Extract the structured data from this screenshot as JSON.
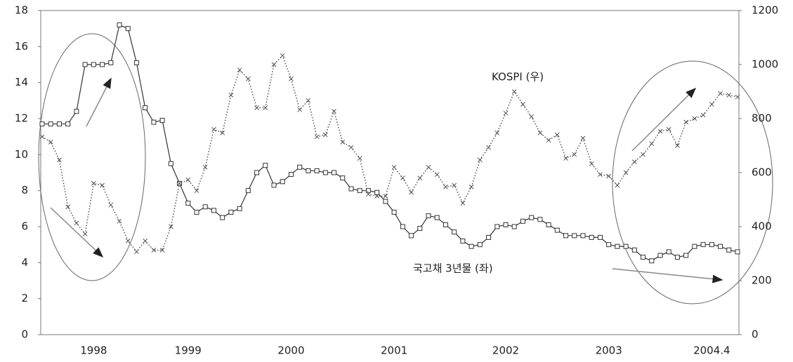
{
  "chart_data": {
    "type": "line",
    "categories": [
      null,
      null,
      null,
      null,
      null,
      null,
      "1998",
      null,
      null,
      null,
      null,
      null,
      null,
      null,
      null,
      null,
      null,
      "1999",
      null,
      null,
      null,
      null,
      null,
      null,
      null,
      null,
      null,
      null,
      null,
      "2000",
      null,
      null,
      null,
      null,
      null,
      null,
      null,
      null,
      null,
      null,
      null,
      "2001",
      null,
      null,
      null,
      null,
      null,
      null,
      null,
      null,
      null,
      null,
      null,
      null,
      "2002",
      null,
      null,
      null,
      null,
      null,
      null,
      null,
      null,
      null,
      null,
      null,
      "2003",
      null,
      null,
      null,
      null,
      null,
      null,
      null,
      null,
      null,
      null,
      null,
      "2004.4",
      null,
      null,
      null
    ],
    "series": [
      {
        "name": "국고채 3년물 (좌)",
        "color": "#333333",
        "marker": "square",
        "dash": "solid",
        "values": [
          11.7,
          11.7,
          11.7,
          11.7,
          12.4,
          15.0,
          15.0,
          15.0,
          15.1,
          17.2,
          17.0,
          15.1,
          12.6,
          11.8,
          11.9,
          9.5,
          8.4,
          7.3,
          6.8,
          7.1,
          6.9,
          6.5,
          6.8,
          7.0,
          8.0,
          9.0,
          9.4,
          8.3,
          8.5,
          8.9,
          9.3,
          9.1,
          9.1,
          9.0,
          9.0,
          8.7,
          8.1,
          8.0,
          8.0,
          7.9,
          7.4,
          6.8,
          6.0,
          5.5,
          5.9,
          6.6,
          6.5,
          6.1,
          5.7,
          5.2,
          4.9,
          5.0,
          5.4,
          6.0,
          6.1,
          6.0,
          6.3,
          6.5,
          6.4,
          6.1,
          5.8,
          5.5,
          5.5,
          5.5,
          5.4,
          5.4,
          5.0,
          4.9,
          4.9,
          4.7,
          4.3,
          4.1,
          4.4,
          4.6,
          4.3,
          4.4,
          4.9,
          5.0,
          5.0,
          4.9,
          4.7,
          4.6
        ]
      },
      {
        "name": "KOSPI (우)",
        "color": "#555555",
        "marker": "x",
        "dash": "dotted",
        "axis": "y2",
        "values": [
          733,
          713,
          647,
          473,
          413,
          373,
          560,
          553,
          480,
          420,
          347,
          307,
          347,
          313,
          313,
          400,
          560,
          573,
          533,
          620,
          760,
          747,
          887,
          980,
          947,
          840,
          840,
          1000,
          1033,
          947,
          833,
          867,
          733,
          740,
          827,
          713,
          693,
          653,
          520,
          513,
          513,
          620,
          580,
          527,
          580,
          620,
          593,
          547,
          553,
          487,
          547,
          647,
          693,
          747,
          820,
          900,
          853,
          807,
          747,
          720,
          740,
          653,
          667,
          727,
          633,
          593,
          587,
          553,
          600,
          640,
          667,
          707,
          753,
          760,
          700,
          787,
          800,
          813,
          853,
          893,
          887,
          880
        ]
      }
    ],
    "ylim": [
      0,
      18
    ],
    "yticks": [
      0,
      2,
      4,
      6,
      8,
      10,
      12,
      14,
      16,
      18
    ],
    "y2lim": [
      0,
      1200
    ],
    "y2ticks": [
      0,
      200,
      400,
      600,
      800,
      1000,
      1200
    ],
    "grid": false
  }
}
